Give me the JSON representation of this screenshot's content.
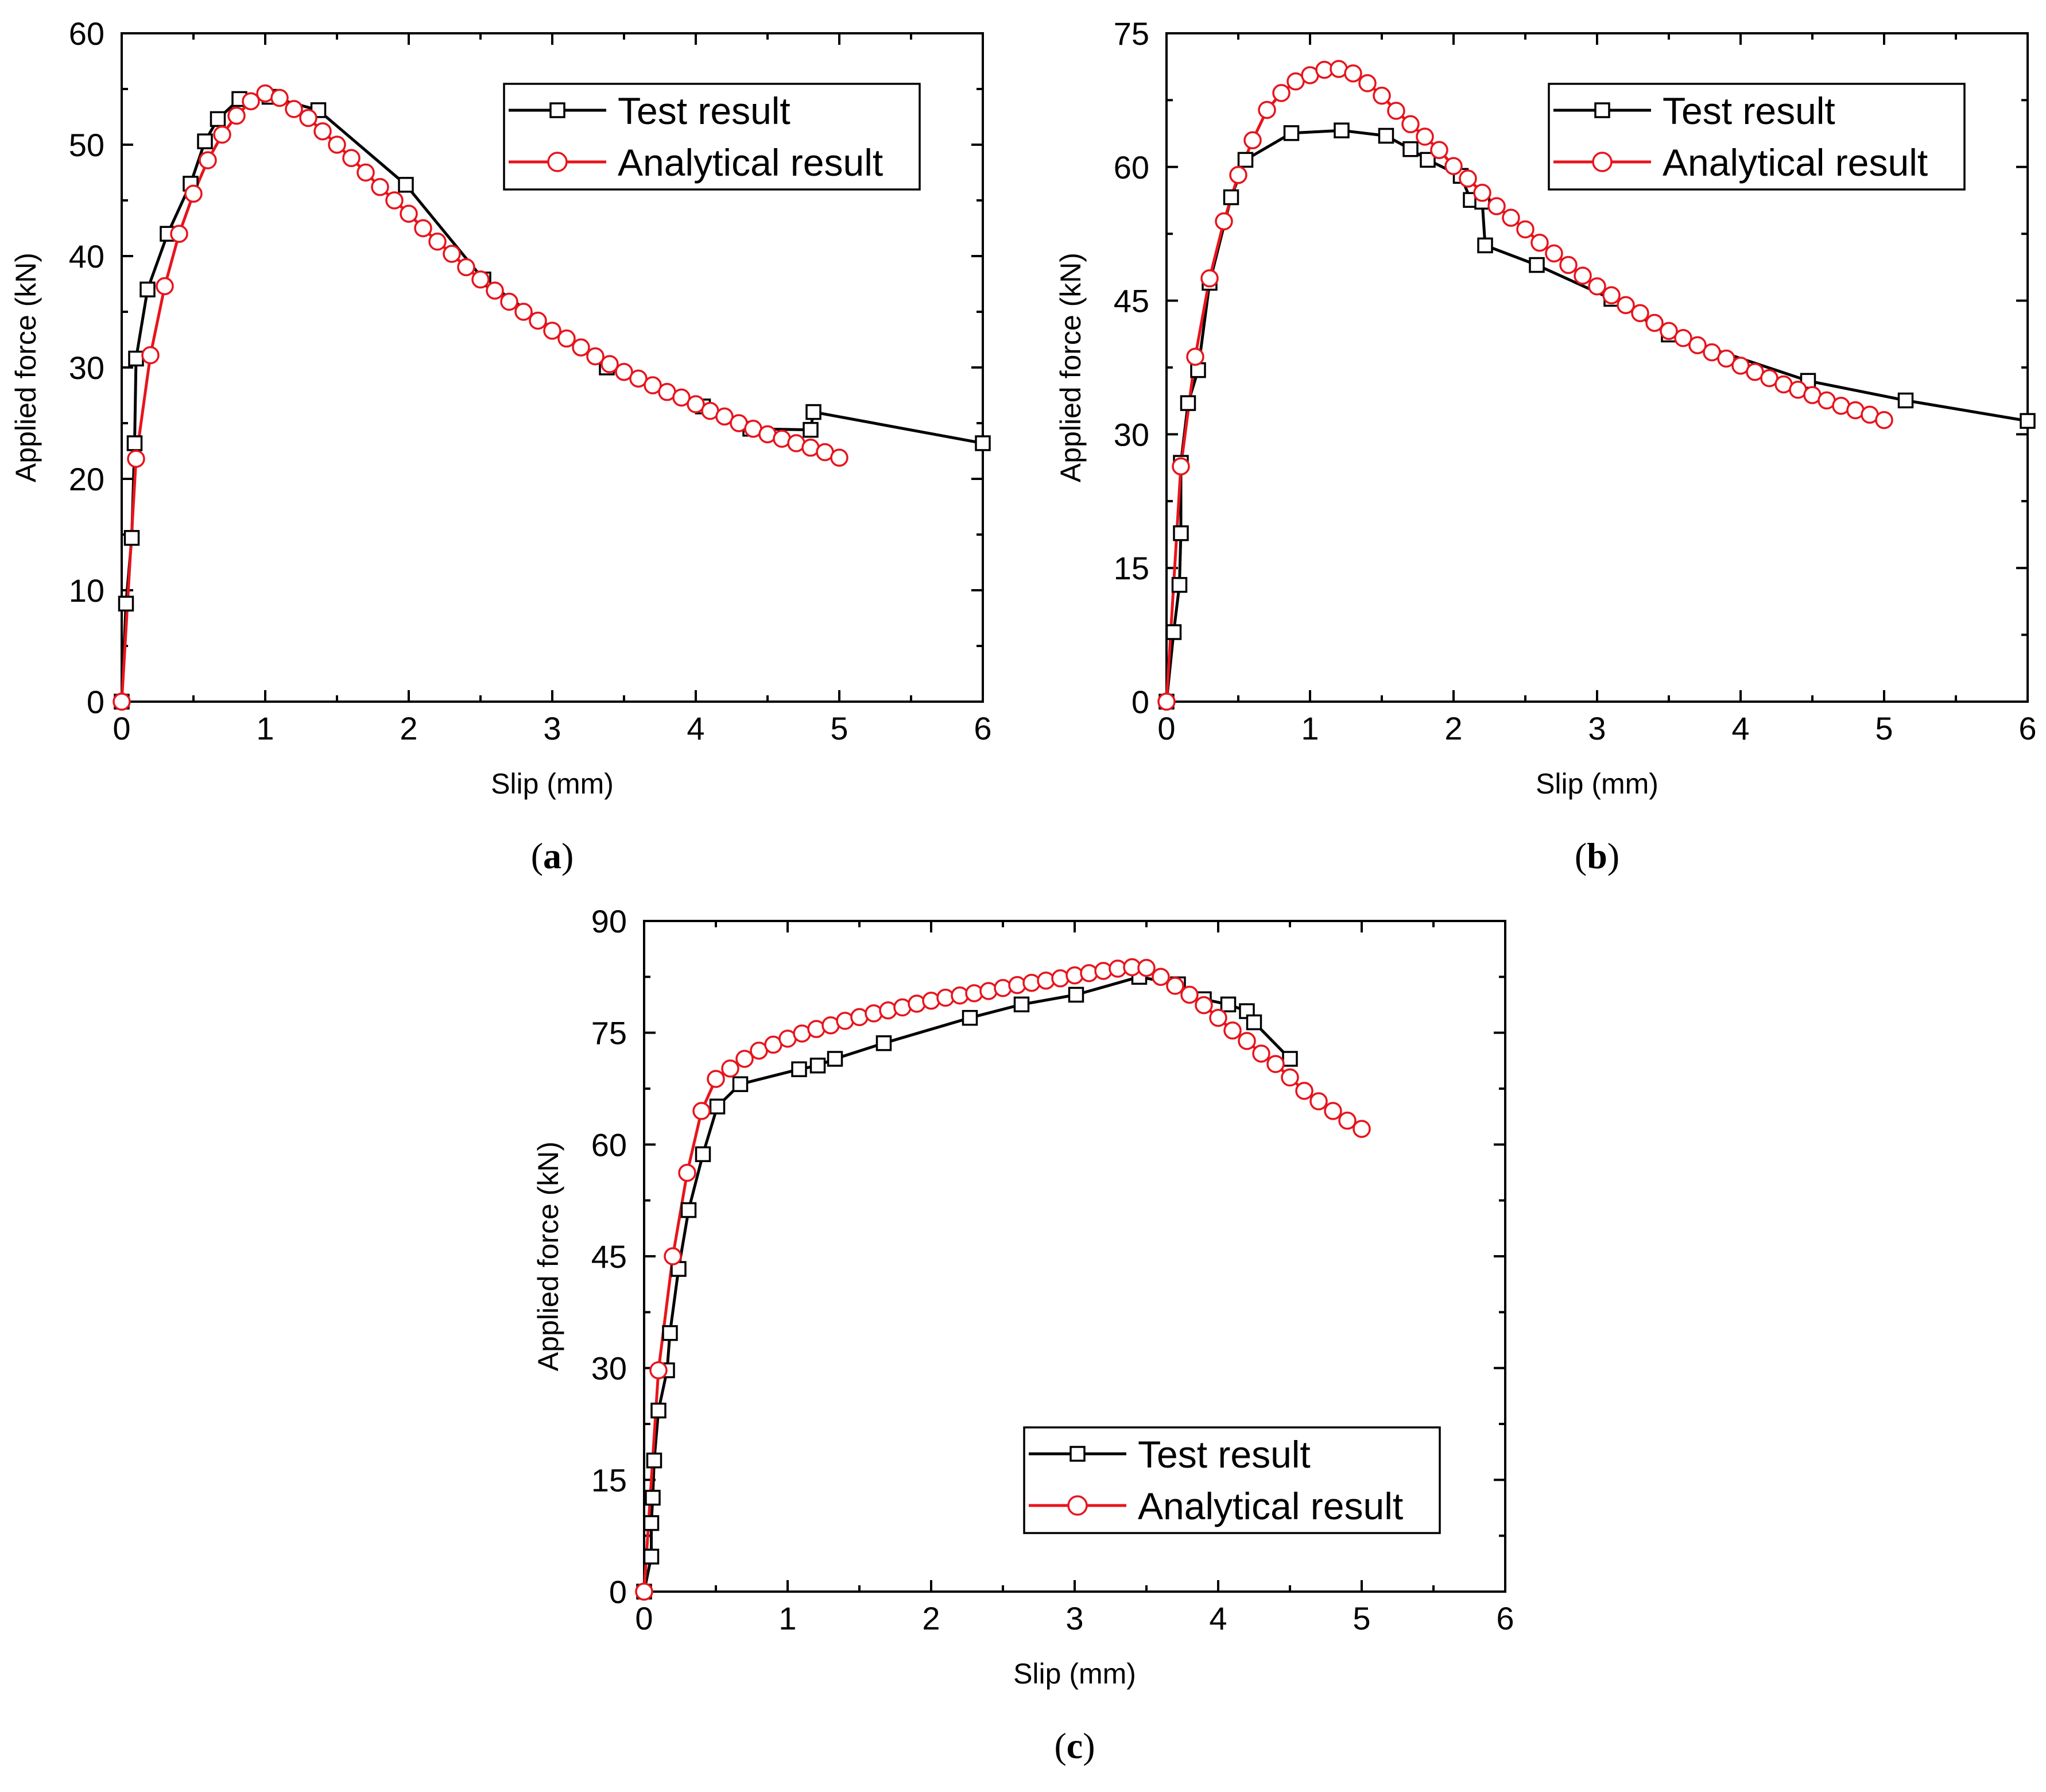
{
  "chart_data": [
    {
      "type": "line",
      "panel_label": "a",
      "xlabel": "Slip (mm)",
      "ylabel": "Applied force (kN)",
      "xlim": [
        0,
        6
      ],
      "ylim": [
        0,
        60
      ],
      "xticks": [
        0,
        1,
        2,
        3,
        4,
        5,
        6
      ],
      "yticks": [
        0,
        10,
        20,
        30,
        40,
        50,
        60
      ],
      "legend_position": "top-right",
      "series": [
        {
          "name": "Test result",
          "color": "#000000",
          "marker": "square",
          "x": [
            0,
            0.03,
            0.07,
            0.09,
            0.1,
            0.18,
            0.32,
            0.48,
            0.58,
            0.67,
            0.82,
            1.03,
            1.37,
            1.98,
            2.52,
            3.38,
            4.05,
            4.38,
            4.8,
            4.82,
            6.0
          ],
          "y": [
            0,
            8.8,
            14.7,
            23.2,
            30.8,
            37.0,
            42.0,
            46.5,
            50.3,
            52.3,
            54.1,
            54.3,
            53.1,
            46.4,
            37.9,
            30.0,
            26.5,
            24.5,
            24.4,
            26.0,
            23.2
          ]
        },
        {
          "name": "Analytical result",
          "color": "#e8141c",
          "marker": "circle",
          "x": [
            0,
            0.1,
            0.2,
            0.3,
            0.4,
            0.5,
            0.6,
            0.7,
            0.8,
            0.9,
            1.0,
            1.1,
            1.2,
            1.3,
            1.4,
            1.5,
            1.6,
            1.7,
            1.8,
            1.9,
            2.0,
            2.1,
            2.2,
            2.3,
            2.4,
            2.5,
            2.6,
            2.7,
            2.8,
            2.9,
            3.0,
            3.1,
            3.2,
            3.3,
            3.4,
            3.5,
            3.6,
            3.7,
            3.8,
            3.9,
            4.0,
            4.1,
            4.2,
            4.3,
            4.4,
            4.5,
            4.6,
            4.7,
            4.8,
            4.9,
            5.0
          ],
          "y": [
            0,
            21.8,
            31.1,
            37.3,
            42.0,
            45.6,
            48.6,
            50.9,
            52.6,
            53.9,
            54.6,
            54.2,
            53.2,
            52.4,
            51.2,
            50.0,
            48.8,
            47.5,
            46.2,
            45.0,
            43.8,
            42.5,
            41.3,
            40.2,
            39.0,
            37.9,
            36.9,
            35.9,
            35.0,
            34.2,
            33.3,
            32.6,
            31.8,
            31.0,
            30.3,
            29.6,
            29.0,
            28.4,
            27.8,
            27.3,
            26.7,
            26.1,
            25.6,
            25.0,
            24.5,
            24.0,
            23.6,
            23.2,
            22.8,
            22.4,
            21.9
          ]
        }
      ]
    },
    {
      "type": "line",
      "panel_label": "b",
      "xlabel": "Slip (mm)",
      "ylabel": "Applied force (kN)",
      "xlim": [
        0,
        6
      ],
      "ylim": [
        0,
        75
      ],
      "xticks": [
        0,
        1,
        2,
        3,
        4,
        5,
        6
      ],
      "yticks": [
        0,
        15,
        30,
        45,
        60,
        75
      ],
      "legend_position": "top-right",
      "series": [
        {
          "name": "Test result",
          "color": "#000000",
          "marker": "square",
          "x": [
            0,
            0.05,
            0.09,
            0.1,
            0.1,
            0.15,
            0.22,
            0.3,
            0.45,
            0.55,
            0.87,
            1.22,
            1.53,
            1.7,
            1.82,
            2.05,
            2.12,
            2.2,
            2.22,
            2.58,
            3.1,
            3.5,
            4.47,
            5.15,
            6.0
          ],
          "y": [
            0,
            7.8,
            13.1,
            18.9,
            26.8,
            33.5,
            37.2,
            47.0,
            56.6,
            60.8,
            63.8,
            64.1,
            63.5,
            62.0,
            60.8,
            59.0,
            56.3,
            56.1,
            51.2,
            49.0,
            45.2,
            41.2,
            36.0,
            33.8,
            31.5
          ]
        },
        {
          "name": "Analytical result",
          "color": "#e8141c",
          "marker": "circle",
          "x": [
            0,
            0.1,
            0.2,
            0.3,
            0.4,
            0.5,
            0.6,
            0.7,
            0.8,
            0.9,
            1.0,
            1.1,
            1.2,
            1.3,
            1.4,
            1.5,
            1.6,
            1.7,
            1.8,
            1.9,
            2.0,
            2.1,
            2.2,
            2.3,
            2.4,
            2.5,
            2.6,
            2.7,
            2.8,
            2.9,
            3.0,
            3.1,
            3.2,
            3.3,
            3.4,
            3.5,
            3.6,
            3.7,
            3.8,
            3.9,
            4.0,
            4.1,
            4.2,
            4.3,
            4.4,
            4.5,
            4.6,
            4.7,
            4.8,
            4.9,
            5.0
          ],
          "y": [
            0,
            26.4,
            38.7,
            47.5,
            53.9,
            59.1,
            63.0,
            66.4,
            68.3,
            69.6,
            70.3,
            70.9,
            71.0,
            70.5,
            69.4,
            68.0,
            66.3,
            64.8,
            63.4,
            61.9,
            60.1,
            58.7,
            57.1,
            55.6,
            54.3,
            53.0,
            51.5,
            50.3,
            49.0,
            47.8,
            46.6,
            45.6,
            44.5,
            43.6,
            42.5,
            41.6,
            40.8,
            40.0,
            39.2,
            38.5,
            37.7,
            37.0,
            36.3,
            35.6,
            35.0,
            34.4,
            33.8,
            33.2,
            32.7,
            32.2,
            31.6
          ]
        }
      ]
    },
    {
      "type": "line",
      "panel_label": "c",
      "xlabel": "Slip (mm)",
      "ylabel": "Applied force (kN)",
      "xlim": [
        0,
        6
      ],
      "ylim": [
        0,
        90
      ],
      "xticks": [
        0,
        1,
        2,
        3,
        4,
        5,
        6
      ],
      "yticks": [
        0,
        15,
        30,
        45,
        60,
        75,
        90
      ],
      "legend_position": "bottom-right",
      "series": [
        {
          "name": "Test result",
          "color": "#000000",
          "marker": "square",
          "x": [
            0,
            0.05,
            0.05,
            0.06,
            0.07,
            0.1,
            0.16,
            0.18,
            0.24,
            0.31,
            0.41,
            0.51,
            0.67,
            1.08,
            1.21,
            1.33,
            1.67,
            2.27,
            2.63,
            3.01,
            3.45,
            3.72,
            3.9,
            4.07,
            4.2,
            4.25,
            4.5
          ],
          "y": [
            0,
            4.7,
            9.2,
            12.6,
            17.6,
            24.3,
            29.7,
            34.7,
            43.3,
            51.2,
            58.7,
            65.1,
            68.1,
            70.1,
            70.6,
            71.5,
            73.6,
            77.0,
            78.8,
            80.1,
            82.5,
            81.5,
            79.5,
            78.8,
            77.9,
            76.4,
            71.5
          ]
        },
        {
          "name": "Analytical result",
          "color": "#e8141c",
          "marker": "circle",
          "x": [
            0,
            0.1,
            0.2,
            0.3,
            0.4,
            0.5,
            0.6,
            0.7,
            0.8,
            0.9,
            1.0,
            1.1,
            1.2,
            1.3,
            1.4,
            1.5,
            1.6,
            1.7,
            1.8,
            1.9,
            2.0,
            2.1,
            2.2,
            2.3,
            2.4,
            2.5,
            2.6,
            2.7,
            2.8,
            2.9,
            3.0,
            3.1,
            3.2,
            3.3,
            3.4,
            3.5,
            3.6,
            3.7,
            3.8,
            3.9,
            4.0,
            4.1,
            4.2,
            4.3,
            4.4,
            4.5,
            4.6,
            4.7,
            4.8,
            4.9,
            5.0
          ],
          "y": [
            0,
            29.7,
            45.0,
            56.2,
            64.5,
            68.8,
            70.2,
            71.5,
            72.6,
            73.4,
            74.2,
            74.9,
            75.5,
            76.0,
            76.6,
            77.1,
            77.6,
            78.0,
            78.4,
            78.9,
            79.3,
            79.7,
            80.0,
            80.3,
            80.6,
            81.0,
            81.4,
            81.7,
            82.0,
            82.3,
            82.7,
            83.0,
            83.3,
            83.6,
            83.8,
            83.7,
            82.5,
            81.3,
            80.1,
            78.7,
            77.0,
            75.3,
            73.9,
            72.2,
            70.8,
            69.0,
            67.2,
            65.8,
            64.5,
            63.2,
            62.1
          ]
        }
      ]
    }
  ]
}
